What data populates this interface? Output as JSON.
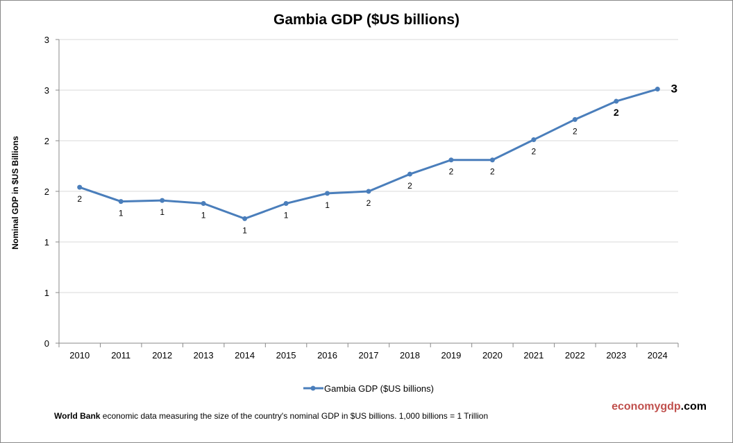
{
  "chart_data": {
    "type": "line",
    "title": "Gambia GDP ($US billions)",
    "ylabel": "Nominal GDP in $US Billions",
    "xlabel": "",
    "categories": [
      "2010",
      "2011",
      "2012",
      "2013",
      "2014",
      "2015",
      "2016",
      "2017",
      "2018",
      "2019",
      "2020",
      "2021",
      "2022",
      "2023",
      "2024"
    ],
    "series": [
      {
        "name": "Gambia GDP ($US billions)",
        "values": [
          1.54,
          1.4,
          1.41,
          1.38,
          1.23,
          1.38,
          1.48,
          1.5,
          1.67,
          1.81,
          1.81,
          2.01,
          2.21,
          2.39,
          2.51
        ],
        "data_labels": [
          "2",
          "1",
          "1",
          "1",
          "1",
          "1",
          "1",
          "2",
          "2",
          "2",
          "2",
          "2",
          "2",
          "2",
          "3"
        ],
        "color": "#4a7ebb"
      }
    ],
    "ylim": [
      0,
      3
    ],
    "yticks": [
      0,
      0.5,
      1,
      1.5,
      2,
      2.5,
      3
    ],
    "ytick_labels": [
      "0",
      "1",
      "1",
      "2",
      "2",
      "3",
      "3"
    ],
    "grid": true,
    "legend": "bottom"
  },
  "footer": {
    "source_bold": "World Bank",
    "source_text": " economic data  measuring the size of the country's nominal GDP in $US billions. 1,000 billions = 1 Trillion",
    "brand_part1": "economygdp",
    "brand_part2": ".com",
    "brand_color": "#c0504d"
  }
}
